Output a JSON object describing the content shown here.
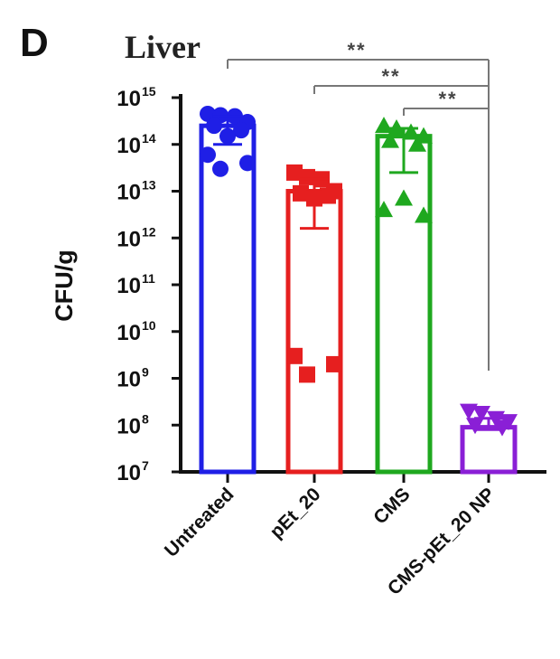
{
  "panel_label": "D",
  "chart_data": {
    "type": "bar",
    "title": "Liver",
    "xlabel": "",
    "ylabel": "CFU/g",
    "yscale": "log",
    "ylim": [
      10000000.0,
      1000000000000000.0
    ],
    "yticks": [
      {
        "base": "10",
        "exp": "15",
        "value": 1000000000000000.0
      },
      {
        "base": "10",
        "exp": "14",
        "value": 100000000000000.0
      },
      {
        "base": "10",
        "exp": "13",
        "value": 10000000000000.0
      },
      {
        "base": "10",
        "exp": "12",
        "value": 1000000000000.0
      },
      {
        "base": "10",
        "exp": "11",
        "value": 100000000000.0
      },
      {
        "base": "10",
        "exp": "10",
        "value": 10000000000.0
      },
      {
        "base": "10",
        "exp": "9",
        "value": 1000000000.0
      },
      {
        "base": "10",
        "exp": "8",
        "value": 100000000.0
      },
      {
        "base": "10",
        "exp": "7",
        "value": 10000000.0
      }
    ],
    "categories": [
      "Untreated",
      "pEt_20",
      "CMS",
      "CMS-pEt_20 NP"
    ],
    "bars": [
      {
        "category": "Untreated",
        "color": "#1f1fe6",
        "marker": "circle",
        "mean": 250000000000000.0,
        "err_low": 100000000000000.0,
        "err_high": 400000000000000.0,
        "points": [
          450000000000000.0,
          420000000000000.0,
          400000000000000.0,
          300000000000000.0,
          250000000000000.0,
          200000000000000.0,
          150000000000000.0,
          60000000000000.0,
          40000000000000.0,
          30000000000000.0
        ]
      },
      {
        "category": "pEt_20",
        "color": "#e61f1f",
        "marker": "square",
        "mean": 10000000000000.0,
        "err_low": 1600000000000.0,
        "err_high": 18000000000000.0,
        "points": [
          25000000000000.0,
          20000000000000.0,
          18000000000000.0,
          10000000000000.0,
          9000000000000.0,
          8000000000000.0,
          7000000000000.0,
          3000000000.0,
          2000000000.0,
          1200000000.0
        ]
      },
      {
        "category": "CMS",
        "color": "#1fa81f",
        "marker": "triangle",
        "mean": 150000000000000.0,
        "err_low": 25000000000000.0,
        "err_high": 220000000000000.0,
        "points": [
          250000000000000.0,
          220000000000000.0,
          180000000000000.0,
          150000000000000.0,
          120000000000000.0,
          100000000000000.0,
          7000000000000.0,
          4000000000000.0,
          3000000000000.0
        ]
      },
      {
        "category": "CMS-pEt_20 NP",
        "color": "#8a1fd6",
        "marker": "triangle-down",
        "mean": 90000000.0,
        "err_low": 80000000.0,
        "err_high": 140000000.0,
        "points": [
          200000000.0,
          180000000.0,
          140000000.0,
          120000000.0,
          100000000.0,
          90000000.0
        ]
      }
    ],
    "comparisons": [
      {
        "from": "Untreated",
        "to": "CMS-pEt_20 NP",
        "label": "**"
      },
      {
        "from": "pEt_20",
        "to": "CMS-pEt_20 NP",
        "label": "**"
      },
      {
        "from": "CMS",
        "to": "CMS-pEt_20 NP",
        "label": "**"
      }
    ],
    "grid": false,
    "legend": "none"
  }
}
